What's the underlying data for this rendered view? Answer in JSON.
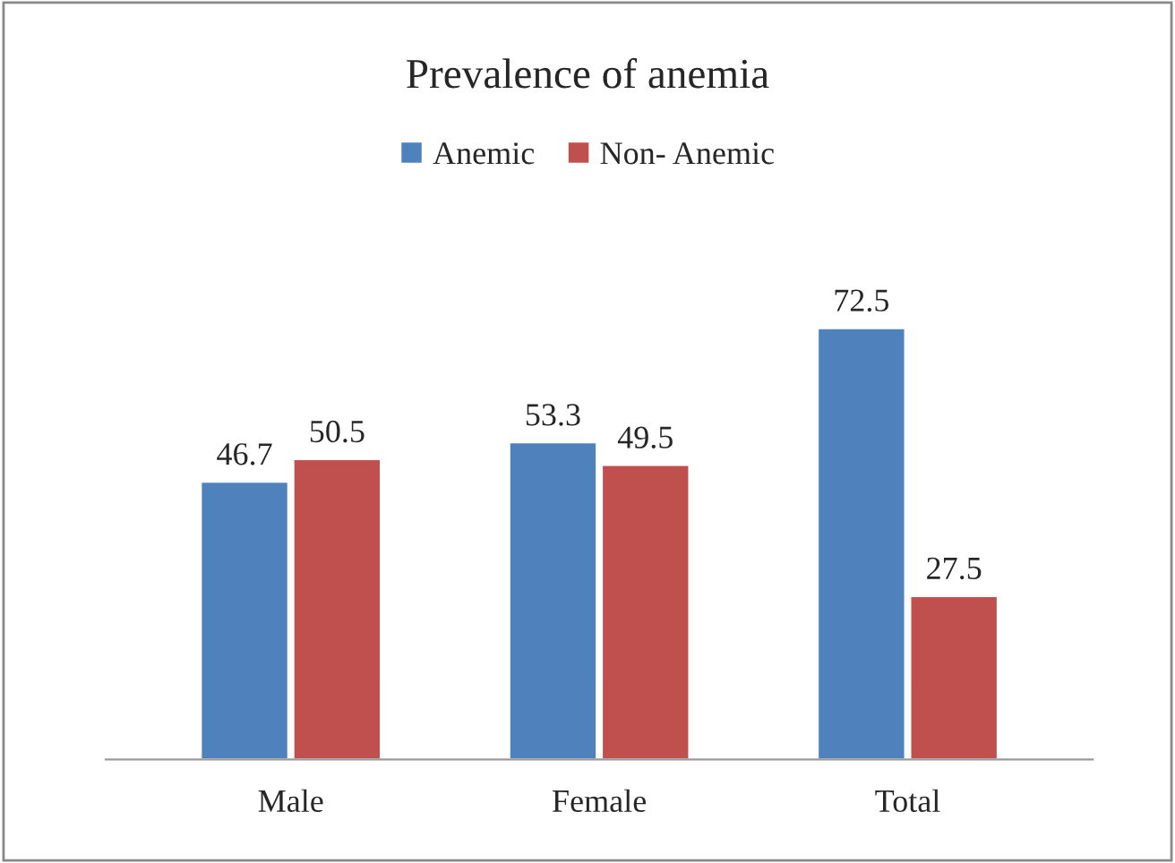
{
  "chart_data": {
    "type": "bar",
    "title": "Prevalence of anemia",
    "categories": [
      "Male",
      "Female",
      "Total"
    ],
    "series": [
      {
        "name": "Anemic",
        "color": "#4f81bd",
        "values": [
          46.7,
          53.3,
          72.5
        ]
      },
      {
        "name": "Non- Anemic",
        "color": "#c0504d",
        "values": [
          50.5,
          49.5,
          27.5
        ]
      }
    ],
    "data_labels": true,
    "legend": "top",
    "grid": false
  }
}
